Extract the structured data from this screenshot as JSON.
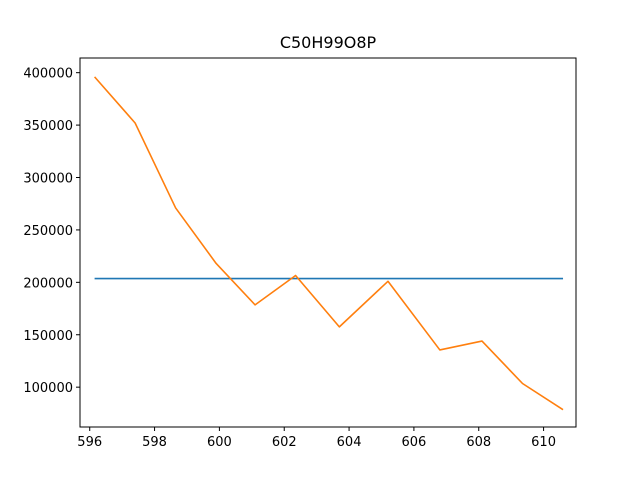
{
  "chart_data": {
    "type": "line",
    "title": "C50H99O8P",
    "xlabel": "",
    "ylabel": "",
    "xlim": [
      595.7,
      611.0
    ],
    "ylim": [
      62000,
      414000
    ],
    "grid": false,
    "x_ticks": [
      596,
      598,
      600,
      602,
      604,
      606,
      608,
      610
    ],
    "y_ticks": [
      100000,
      150000,
      200000,
      250000,
      300000,
      350000,
      400000
    ],
    "series": [
      {
        "color": "#1f77b4",
        "x": [
          596.15,
          610.6
        ],
        "y": [
          203600,
          203600
        ]
      },
      {
        "color": "#ff7f0e",
        "x": [
          596.15,
          597.4,
          598.65,
          599.9,
          601.1,
          602.35,
          603.7,
          605.2,
          606.8,
          608.1,
          609.35,
          610.6
        ],
        "y": [
          396000,
          352000,
          271000,
          218000,
          178500,
          206500,
          157500,
          201000,
          135500,
          144000,
          103500,
          78500
        ]
      }
    ]
  }
}
